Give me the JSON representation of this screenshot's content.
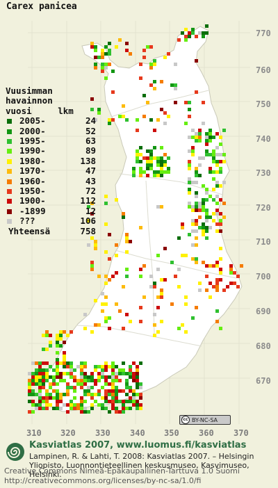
{
  "title": "Carex panicea",
  "legend": {
    "header_lines": [
      "Vuusimman",
      "havainnon",
      "vuosi     lkm"
    ],
    "items": [
      {
        "label": "2005-",
        "count": "24",
        "color": "#0b6e0b"
      },
      {
        "label": "2000-",
        "count": "52",
        "color": "#139613"
      },
      {
        "label": "1995-",
        "count": "63",
        "color": "#2fc02f"
      },
      {
        "label": "1990-",
        "count": "89",
        "color": "#66ee11"
      },
      {
        "label": "1980-",
        "count": "138",
        "color": "#fff100"
      },
      {
        "label": "1970-",
        "count": "47",
        "color": "#fdbb0e"
      },
      {
        "label": "1960-",
        "count": "43",
        "color": "#f57c00"
      },
      {
        "label": "1950-",
        "count": "72",
        "color": "#e6391c"
      },
      {
        "label": "1900-",
        "count": "112",
        "color": "#cc0b0b"
      },
      {
        "label": "-1899",
        "count": "12",
        "color": "#8a0000"
      },
      {
        "label": "???",
        "count": "106",
        "color": "#c8c8c8"
      }
    ],
    "total_label": "Yhteensä",
    "total_count": "758"
  },
  "y_axis_labels": [
    "770",
    "760",
    "750",
    "740",
    "730",
    "720",
    "710",
    "700",
    "690",
    "680",
    "670"
  ],
  "x_axis_labels": [
    "310",
    "320",
    "330",
    "340",
    "350",
    "360",
    "370"
  ],
  "license_badge": {
    "text": "BY-NC-SA",
    "mark": "cc"
  },
  "footer": {
    "title": "Kasviatlas 2007, www.luomus.fi/kasviatlas",
    "citation": "Lampinen, R. & Lahti, T. 2008: Kasviatlas 2007. – Helsingin Yliopisto, Luonnontieteellinen keskusmuseo, Kasvimuseo, Helsinki.",
    "license_line1": "Creative Commons Nimeä-Epäkaupallinen-Tarttuva 1.0 Suomi",
    "license_line2": "http://creativecommons.org/licenses/by-nc-sa/1.0/fi"
  },
  "colors": {
    "background": "#f1f1dd",
    "map_fill": "#ffffff",
    "grid": "#d8d8c8",
    "footer_title": "#2f6e45"
  }
}
